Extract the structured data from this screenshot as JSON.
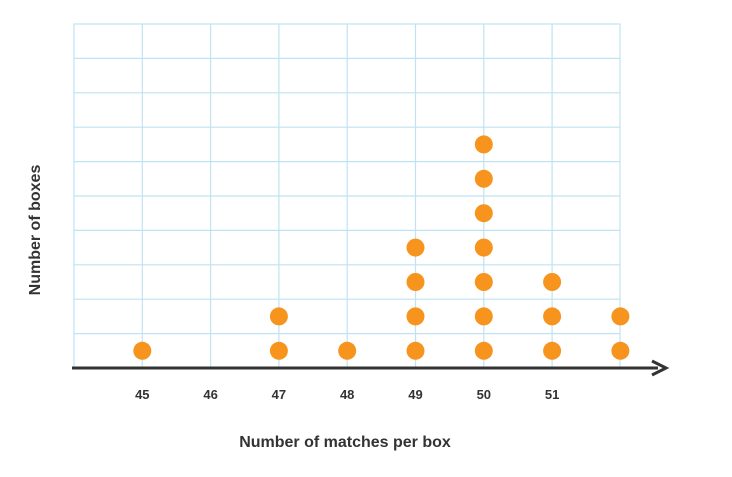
{
  "chart_data": {
    "type": "scatter",
    "subtype": "dot-plot",
    "title": "",
    "xlabel": "Number of matches per box",
    "ylabel": "Number of boxes",
    "x_ticks": [
      "45",
      "46",
      "47",
      "48",
      "49",
      "50",
      "51"
    ],
    "xlim": [
      44,
      52
    ],
    "ylim": [
      0,
      10
    ],
    "grid": true,
    "dot_color": "#F7941D",
    "grid_color": "#BFE3F2",
    "axis_color": "#333333",
    "points": [
      {
        "x": 45,
        "count": 1
      },
      {
        "x": 46,
        "count": 0
      },
      {
        "x": 47,
        "count": 2
      },
      {
        "x": 48,
        "count": 1
      },
      {
        "x": 49,
        "count": 4
      },
      {
        "x": 50,
        "count": 7
      },
      {
        "x": 51,
        "count": 3
      },
      {
        "x": 52,
        "count": 2
      }
    ]
  }
}
